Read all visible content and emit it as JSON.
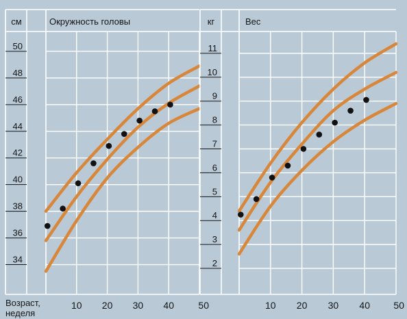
{
  "colors": {
    "background": "#b9c9d6",
    "grid": "#ffffff",
    "curve": "#d8873a",
    "point": "#111111",
    "text": "#151515"
  },
  "x_axis": {
    "label_line1": "Возраст,",
    "label_line2": "неделя",
    "ticks": [
      "10",
      "20",
      "30",
      "40",
      "50"
    ]
  },
  "chart_data": [
    {
      "type": "scatter",
      "unit": "см",
      "title": "Окружность головы",
      "xlim": [
        0,
        50
      ],
      "ylim": [
        33,
        52
      ],
      "yticks": [
        34,
        36,
        38,
        40,
        42,
        44,
        46,
        48,
        50
      ],
      "ytick_labels": [
        "34",
        "36",
        "38",
        "40",
        "42",
        "44",
        "46",
        "48",
        "50"
      ],
      "grid": true,
      "reference_curves": [
        {
          "x": [
            0,
            10,
            20,
            30,
            40,
            50
          ],
          "y": [
            38.0,
            40.9,
            43.4,
            45.7,
            47.6,
            48.9
          ]
        },
        {
          "x": [
            0,
            10,
            20,
            30,
            40,
            50
          ],
          "y": [
            35.8,
            39.1,
            41.9,
            44.3,
            46.1,
            47.4
          ]
        },
        {
          "x": [
            0,
            10,
            20,
            30,
            40,
            50
          ],
          "y": [
            33.5,
            37.3,
            40.5,
            42.8,
            44.6,
            45.7
          ]
        }
      ],
      "points": {
        "x": [
          0.5,
          5.5,
          10.5,
          15.5,
          20.5,
          25.5,
          30.5,
          35.5,
          40.5
        ],
        "y": [
          36.9,
          38.2,
          40.1,
          41.6,
          42.9,
          43.8,
          44.8,
          45.5,
          46.0
        ]
      }
    },
    {
      "type": "scatter",
      "unit": "кг",
      "title": "Вес",
      "xlim": [
        0,
        50
      ],
      "ylim": [
        1.6,
        12.2
      ],
      "yticks": [
        2,
        3,
        4,
        5,
        6,
        7,
        8,
        9,
        10,
        11
      ],
      "ytick_labels": [
        "2",
        "3",
        "4",
        "5",
        "6",
        "7",
        "8",
        "9",
        "10",
        "11"
      ],
      "grid": true,
      "reference_curves": [
        {
          "x": [
            0,
            10,
            20,
            30,
            40,
            50
          ],
          "y": [
            4.4,
            6.4,
            8.1,
            9.5,
            10.6,
            11.4
          ]
        },
        {
          "x": [
            0,
            10,
            20,
            30,
            40,
            50
          ],
          "y": [
            3.6,
            5.6,
            7.2,
            8.6,
            9.5,
            10.2
          ]
        },
        {
          "x": [
            0,
            10,
            20,
            30,
            40,
            50
          ],
          "y": [
            2.6,
            4.6,
            6.1,
            7.3,
            8.2,
            8.9
          ]
        }
      ],
      "points": {
        "x": [
          0.5,
          5.5,
          10.5,
          15.5,
          20.5,
          25.5,
          30.5,
          35.5,
          40.5
        ],
        "y": [
          4.25,
          4.9,
          5.8,
          6.3,
          7.0,
          7.6,
          8.1,
          8.6,
          9.05
        ]
      }
    }
  ]
}
